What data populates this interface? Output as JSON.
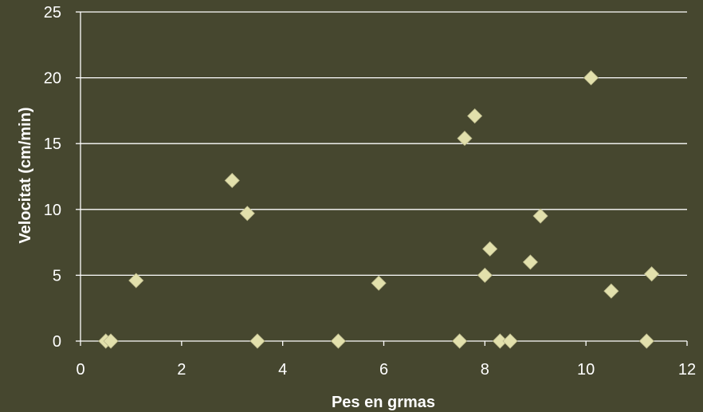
{
  "colors": {
    "background": "#46472f",
    "gridline": "#ffffff",
    "axis": "#ffffff",
    "marker": "#e2e0ac",
    "marker_stroke": "#b9b78a",
    "text": "#ffffff"
  },
  "chart_data": {
    "type": "scatter",
    "xlabel": "Pes en grmas",
    "ylabel": "Velocitat (cm/min)",
    "xlim": [
      0,
      12
    ],
    "ylim": [
      0,
      25
    ],
    "xticks": [
      0,
      2,
      4,
      6,
      8,
      10,
      12
    ],
    "yticks": [
      0,
      5,
      10,
      15,
      20,
      25
    ],
    "grid": "horizontal",
    "legend": "none",
    "marker": "diamond",
    "series": [
      {
        "points": [
          {
            "x": 0.5,
            "y": 0
          },
          {
            "x": 0.6,
            "y": 0
          },
          {
            "x": 1.1,
            "y": 4.6
          },
          {
            "x": 3.0,
            "y": 12.2
          },
          {
            "x": 3.3,
            "y": 9.7
          },
          {
            "x": 3.5,
            "y": 0
          },
          {
            "x": 5.1,
            "y": 0
          },
          {
            "x": 5.9,
            "y": 4.4
          },
          {
            "x": 7.5,
            "y": 0
          },
          {
            "x": 7.6,
            "y": 15.4
          },
          {
            "x": 7.8,
            "y": 17.1
          },
          {
            "x": 8.0,
            "y": 5.0
          },
          {
            "x": 8.1,
            "y": 7.0
          },
          {
            "x": 8.3,
            "y": 0
          },
          {
            "x": 8.5,
            "y": 0
          },
          {
            "x": 8.9,
            "y": 6.0
          },
          {
            "x": 9.1,
            "y": 9.5
          },
          {
            "x": 10.1,
            "y": 20.0
          },
          {
            "x": 10.5,
            "y": 3.8
          },
          {
            "x": 11.2,
            "y": 0
          },
          {
            "x": 11.3,
            "y": 5.1
          }
        ]
      }
    ]
  }
}
